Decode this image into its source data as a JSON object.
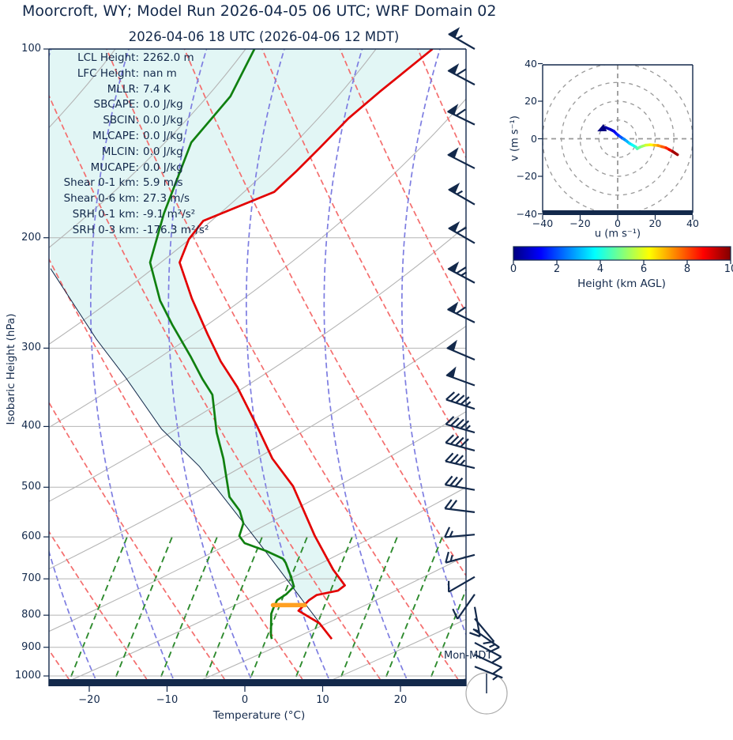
{
  "header": {
    "title": "Moorcroft, WY; Model Run 2026-04-05 06 UTC; WRF Domain 02",
    "subtitle": "2026-04-06 18 UTC  (2026-04-06 12 MDT)"
  },
  "watermark": "Mon-MDT",
  "colors": {
    "navy": "#13294b",
    "temperature": "#e30000",
    "dewpoint": "#108010",
    "parcel": "#13294b",
    "cin_fill": "#e2f6f5",
    "isobar": "#b5b5b5",
    "gray_diag": "#b5b5b5",
    "dry_adiabat": "#f46d6d",
    "moist_adiabat": "#7d7de1",
    "mixing_ratio": "#2e8b2e",
    "lcl_marker": "#ffa022",
    "hodo_grid": "#999999"
  },
  "stats": [
    {
      "label": "LCL Height:",
      "value": "2262.0 m"
    },
    {
      "label": "LFC Height:",
      "value": "nan m"
    },
    {
      "label": "MLLR:",
      "value": "7.4 K"
    },
    {
      "label": "SBCAPE:",
      "value": "0.0 J/kg"
    },
    {
      "label": "SBCIN:",
      "value": "0.0 J/kg"
    },
    {
      "label": "MLCAPE:",
      "value": "0.0 J/kg"
    },
    {
      "label": "MLCIN:",
      "value": "0.0 J/kg"
    },
    {
      "label": "MUCAPE:",
      "value": "0.0 J/kg"
    },
    {
      "label": "Shear 0-1 km:",
      "value": "5.9 m/s"
    },
    {
      "label": "Shear 0-6 km:",
      "value": "27.3 m/s"
    },
    {
      "label": "SRH 0-1 km:",
      "value": "-9.1 m²/s²"
    },
    {
      "label": "SRH 0-3 km:",
      "value": "-176.3 m²/s²"
    }
  ],
  "chart_data": [
    {
      "type": "line",
      "subtype": "skewt",
      "xlabel": "Temperature (°C)",
      "ylabel": "Isobaric Height (hPa)",
      "x_ticks": [
        -20,
        -10,
        0,
        10,
        20
      ],
      "x_tick_labels": [
        "−20",
        "−10",
        "0",
        "10",
        "20"
      ],
      "p_ticks": [
        100,
        200,
        300,
        400,
        500,
        600,
        700,
        800,
        900,
        1000
      ],
      "pressure_range": [
        100,
        1050
      ],
      "series": [
        {
          "name": "temperature",
          "units": "degC vs hPa",
          "points": [
            [
              100,
              -57.5
            ],
            [
              117,
              -58.8
            ],
            [
              129,
              -59.4
            ],
            [
              144,
              -59.3
            ],
            [
              157,
              -59.3
            ],
            [
              169,
              -59.5
            ],
            [
              180,
              -62.7
            ],
            [
              188,
              -64.9
            ],
            [
              201,
              -64.4
            ],
            [
              219,
              -62.6
            ],
            [
              250,
              -56.4
            ],
            [
              285,
              -49.8
            ],
            [
              315,
              -44.6
            ],
            [
              346,
              -39.2
            ],
            [
              399,
              -31.7
            ],
            [
              450,
              -25.5
            ],
            [
              498,
              -19.3
            ],
            [
              598,
              -10.1
            ],
            [
              677,
              -3.4
            ],
            [
              717,
              0.1
            ],
            [
              731,
              -0.1
            ],
            [
              743,
              -2.3
            ],
            [
              757,
              -2.6
            ],
            [
              787,
              -2.6
            ],
            [
              824,
              1.7
            ],
            [
              873,
              5.3
            ]
          ]
        },
        {
          "name": "dewpoint",
          "units": "degC vs hPa",
          "points": [
            [
              100,
              -80.4
            ],
            [
              119,
              -77.4
            ],
            [
              141,
              -76.5
            ],
            [
              183,
              -70.9
            ],
            [
              219,
              -66.4
            ],
            [
              252,
              -60.2
            ],
            [
              275,
              -55.6
            ],
            [
              310,
              -49.0
            ],
            [
              336,
              -44.7
            ],
            [
              356,
              -41.4
            ],
            [
              409,
              -36.0
            ],
            [
              450,
              -31.8
            ],
            [
              518,
              -26.1
            ],
            [
              545,
              -23.0
            ],
            [
              571,
              -20.9
            ],
            [
              598,
              -19.8
            ],
            [
              614,
              -18.2
            ],
            [
              632,
              -14.4
            ],
            [
              650,
              -11.3
            ],
            [
              660,
              -10.4
            ],
            [
              695,
              -7.9
            ],
            [
              720,
              -6.3
            ],
            [
              741,
              -6.3
            ],
            [
              757,
              -6.7
            ],
            [
              778,
              -6.2
            ],
            [
              796,
              -5.7
            ],
            [
              861,
              -3.0
            ],
            [
              873,
              -2.4
            ]
          ]
        },
        {
          "name": "parcel",
          "units": "degC vs hPa",
          "points": [
            [
              873,
              5.3
            ],
            [
              759,
              -3.3
            ],
            [
              648,
              -13.0
            ],
            [
              555,
              -22.6
            ],
            [
              463,
              -33.9
            ],
            [
              404,
              -43.5
            ],
            [
              334,
              -54.8
            ],
            [
              290,
              -63.5
            ],
            [
              224,
              -78.4
            ]
          ]
        }
      ],
      "lcl_marker": {
        "pressure": 771,
        "t_start": -6.6,
        "t_end": -2.5
      },
      "wind_barbs_note": "pressure hPa, direction deg from N, pennants(25 m/s), fulls(5 m/s), halves(2.5 m/s)",
      "wind_barbs": [
        [
          100,
          300,
          1,
          0,
          1
        ],
        [
          114,
          298,
          1,
          1,
          0
        ],
        [
          132,
          296,
          1,
          1,
          0
        ],
        [
          155,
          297,
          1,
          0,
          0
        ],
        [
          177,
          300,
          1,
          0,
          1
        ],
        [
          204,
          300,
          1,
          1,
          0
        ],
        [
          236,
          298,
          1,
          1,
          1
        ],
        [
          273,
          296,
          1,
          1,
          0
        ],
        [
          313,
          293,
          1,
          0,
          0
        ],
        [
          344,
          290,
          1,
          0,
          0
        ],
        [
          375,
          288,
          0,
          4,
          1
        ],
        [
          409,
          286,
          0,
          4,
          1
        ],
        [
          437,
          285,
          0,
          4,
          0
        ],
        [
          466,
          283,
          0,
          3,
          1
        ],
        [
          505,
          280,
          0,
          3,
          0
        ],
        [
          548,
          277,
          0,
          2,
          0
        ],
        [
          595,
          265,
          0,
          1,
          1
        ],
        [
          641,
          255,
          0,
          1,
          1
        ],
        [
          695,
          240,
          0,
          1,
          0
        ],
        [
          741,
          215,
          0,
          1,
          0
        ],
        [
          776,
          170,
          0,
          1,
          1
        ],
        [
          810,
          140,
          0,
          1,
          0
        ],
        [
          845,
          125,
          0,
          1,
          1
        ],
        [
          885,
          118,
          0,
          1,
          0
        ],
        [
          925,
          115,
          0,
          1,
          0
        ],
        [
          966,
          112,
          0,
          0,
          1
        ]
      ]
    },
    {
      "type": "line",
      "subtype": "hodograph",
      "xlabel": "u (m s⁻¹)",
      "ylabel": "v (m s⁻¹)",
      "u_ticks": [
        -40,
        -20,
        0,
        20,
        40
      ],
      "v_ticks": [
        40,
        20,
        0,
        -20,
        -40
      ],
      "u_tick_labels": [
        "−40",
        "−20",
        "0",
        "20",
        "40"
      ],
      "v_tick_labels": [
        "40",
        "20",
        "0",
        "−20",
        "−40"
      ],
      "rings": [
        10,
        20,
        30,
        40
      ],
      "trace_note": "u m/s, v m/s, height km AGL (jet colormap)",
      "trace": [
        [
          -8.2,
          5.2,
          0
        ],
        [
          -6.5,
          6.0,
          0.3
        ],
        [
          -4,
          5,
          0.6
        ],
        [
          -2,
          4,
          0.9
        ],
        [
          -0.5,
          2.5,
          1.3
        ],
        [
          1.3,
          1.1,
          1.8
        ],
        [
          3,
          0,
          2.3
        ],
        [
          4.6,
          -1.1,
          2.8
        ],
        [
          6.2,
          -2.4,
          3.2
        ],
        [
          7.6,
          -3.2,
          3.6
        ],
        [
          9.7,
          -4.4,
          4.1
        ],
        [
          10.4,
          -5.3,
          4.4
        ],
        [
          11.6,
          -4.6,
          4.7
        ],
        [
          13.1,
          -4.0,
          5.1
        ],
        [
          15,
          -3.4,
          5.6
        ],
        [
          17.3,
          -3.2,
          6.1
        ],
        [
          19.4,
          -3.4,
          6.6
        ],
        [
          21.5,
          -3.6,
          7.1
        ],
        [
          23.5,
          -4.2,
          7.6
        ],
        [
          25.7,
          -4.8,
          8.1
        ],
        [
          27.5,
          -5.8,
          8.7
        ],
        [
          29.3,
          -6.8,
          9.3
        ],
        [
          31.9,
          -8.5,
          10
        ]
      ]
    },
    {
      "type": "colorbar",
      "label": "Height (km AGL)",
      "ticks": [
        0,
        2,
        4,
        6,
        8,
        10
      ],
      "range": [
        0,
        10
      ],
      "colormap": "jet"
    }
  ]
}
